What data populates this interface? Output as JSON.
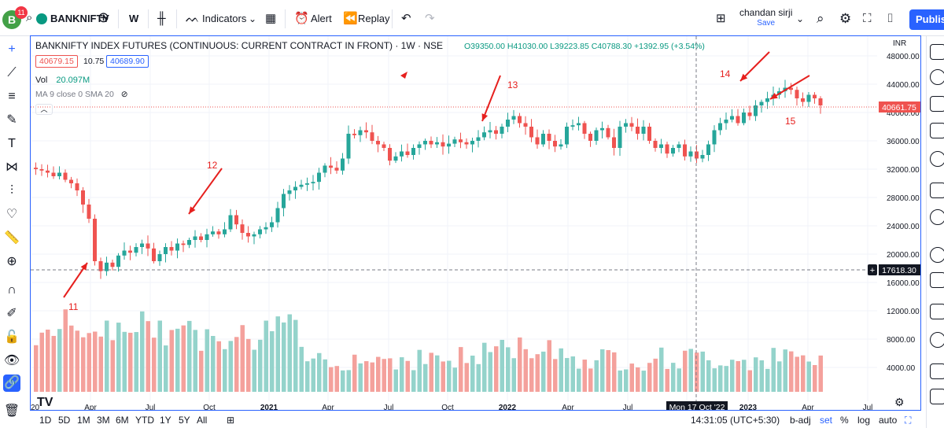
{
  "topbar": {
    "avatar_letter": "B",
    "notifications": "11",
    "symbol": "BANKNIFTY",
    "interval": "W",
    "indicators_label": "Indicators",
    "alert_label": "Alert",
    "replay_label": "Replay",
    "user_name": "chandan sirji",
    "save_label": "Save",
    "publish_label": "Publish"
  },
  "legend": {
    "title": "BANKNIFTY INDEX FUTURES (CONTINUOUS: CURRENT CONTRACT IN FRONT) · 1W · NSE",
    "ohlc": "O39350.00 H41030.00 L39223.85 C40788.30 +1392.95 (+3.54%)",
    "bid": "40679.15",
    "spread": "10.75",
    "ask": "40689.90",
    "vol_label": "Vol",
    "vol_value": "20.097M",
    "ma_label": "MA 9 close 0 SMA 20",
    "collapse_glyph": "︿"
  },
  "chart_data": {
    "type": "candlestick",
    "currency": "INR",
    "price_axis": [
      "48000.00",
      "44000.00",
      "40000.00",
      "36000.00",
      "32000.00",
      "28000.00",
      "24000.00",
      "20000.00",
      "16000.00",
      "12000.00",
      "8000.00",
      "4000.00"
    ],
    "time_axis": [
      "20",
      "Apr",
      "Jul",
      "Oct",
      "2021",
      "Apr",
      "Jul",
      "Oct",
      "2022",
      "Apr",
      "Jul",
      "Oct",
      "2023",
      "Apr",
      "Jul"
    ],
    "crosshair_date": "Mon 17 Oct '22",
    "crosshair_price": "17618.30",
    "last_price": "40661.75",
    "annotations": [
      "11",
      "12",
      "13",
      "14",
      "15"
    ],
    "close_series": [
      32000,
      31800,
      31500,
      31000,
      31500,
      30500,
      30000,
      29000,
      27000,
      25000,
      19000,
      17600,
      18800,
      18200,
      19800,
      20500,
      20200,
      21000,
      21500,
      20800,
      19000,
      20000,
      21000,
      20500,
      21500,
      21300,
      22000,
      22500,
      22000,
      22800,
      23200,
      22800,
      23500,
      25500,
      24200,
      23000,
      22500,
      22800,
      23500,
      23800,
      24500,
      26500,
      28500,
      29000,
      29500,
      29800,
      30000,
      30200,
      31500,
      32500,
      32200,
      31800,
      33500,
      37000,
      36800,
      37500,
      37200,
      36000,
      35500,
      35000,
      33200,
      33800,
      34500,
      34000,
      35000,
      35500,
      36000,
      35500,
      35800,
      35200,
      35600,
      36200,
      35800,
      35500,
      36000,
      36500,
      37200,
      37500,
      37000,
      38000,
      39000,
      39500,
      38500,
      38000,
      36500,
      35500,
      37000,
      36000,
      35200,
      35500,
      38000,
      38200,
      38500,
      37000,
      36000,
      37500,
      37800,
      36500,
      35000,
      38000,
      38500,
      38000,
      37000,
      38000,
      36000,
      35000,
      35500,
      34200,
      35000,
      35500,
      33800,
      34500,
      33500,
      34000,
      35500,
      37500,
      38500,
      39000,
      39500,
      38500,
      40000,
      39500,
      41000,
      41500,
      42000,
      42500,
      43000,
      43500,
      43200,
      42000,
      41500,
      42500,
      42000,
      41000
    ]
  },
  "bottombar": {
    "ranges": [
      "1D",
      "5D",
      "1M",
      "3M",
      "6M",
      "YTD",
      "1Y",
      "5Y",
      "All"
    ],
    "time": "14:31:05 (UTC+5:30)",
    "badj": "b-adj",
    "set": "set",
    "pct": "%",
    "log": "log",
    "auto": "auto"
  },
  "colors": {
    "up": "#26a69a",
    "down": "#ef5350",
    "up_vol": "#94d3cb",
    "down_vol": "#f4a19c",
    "arrow": "#e6201e",
    "accent": "#2962ff"
  }
}
